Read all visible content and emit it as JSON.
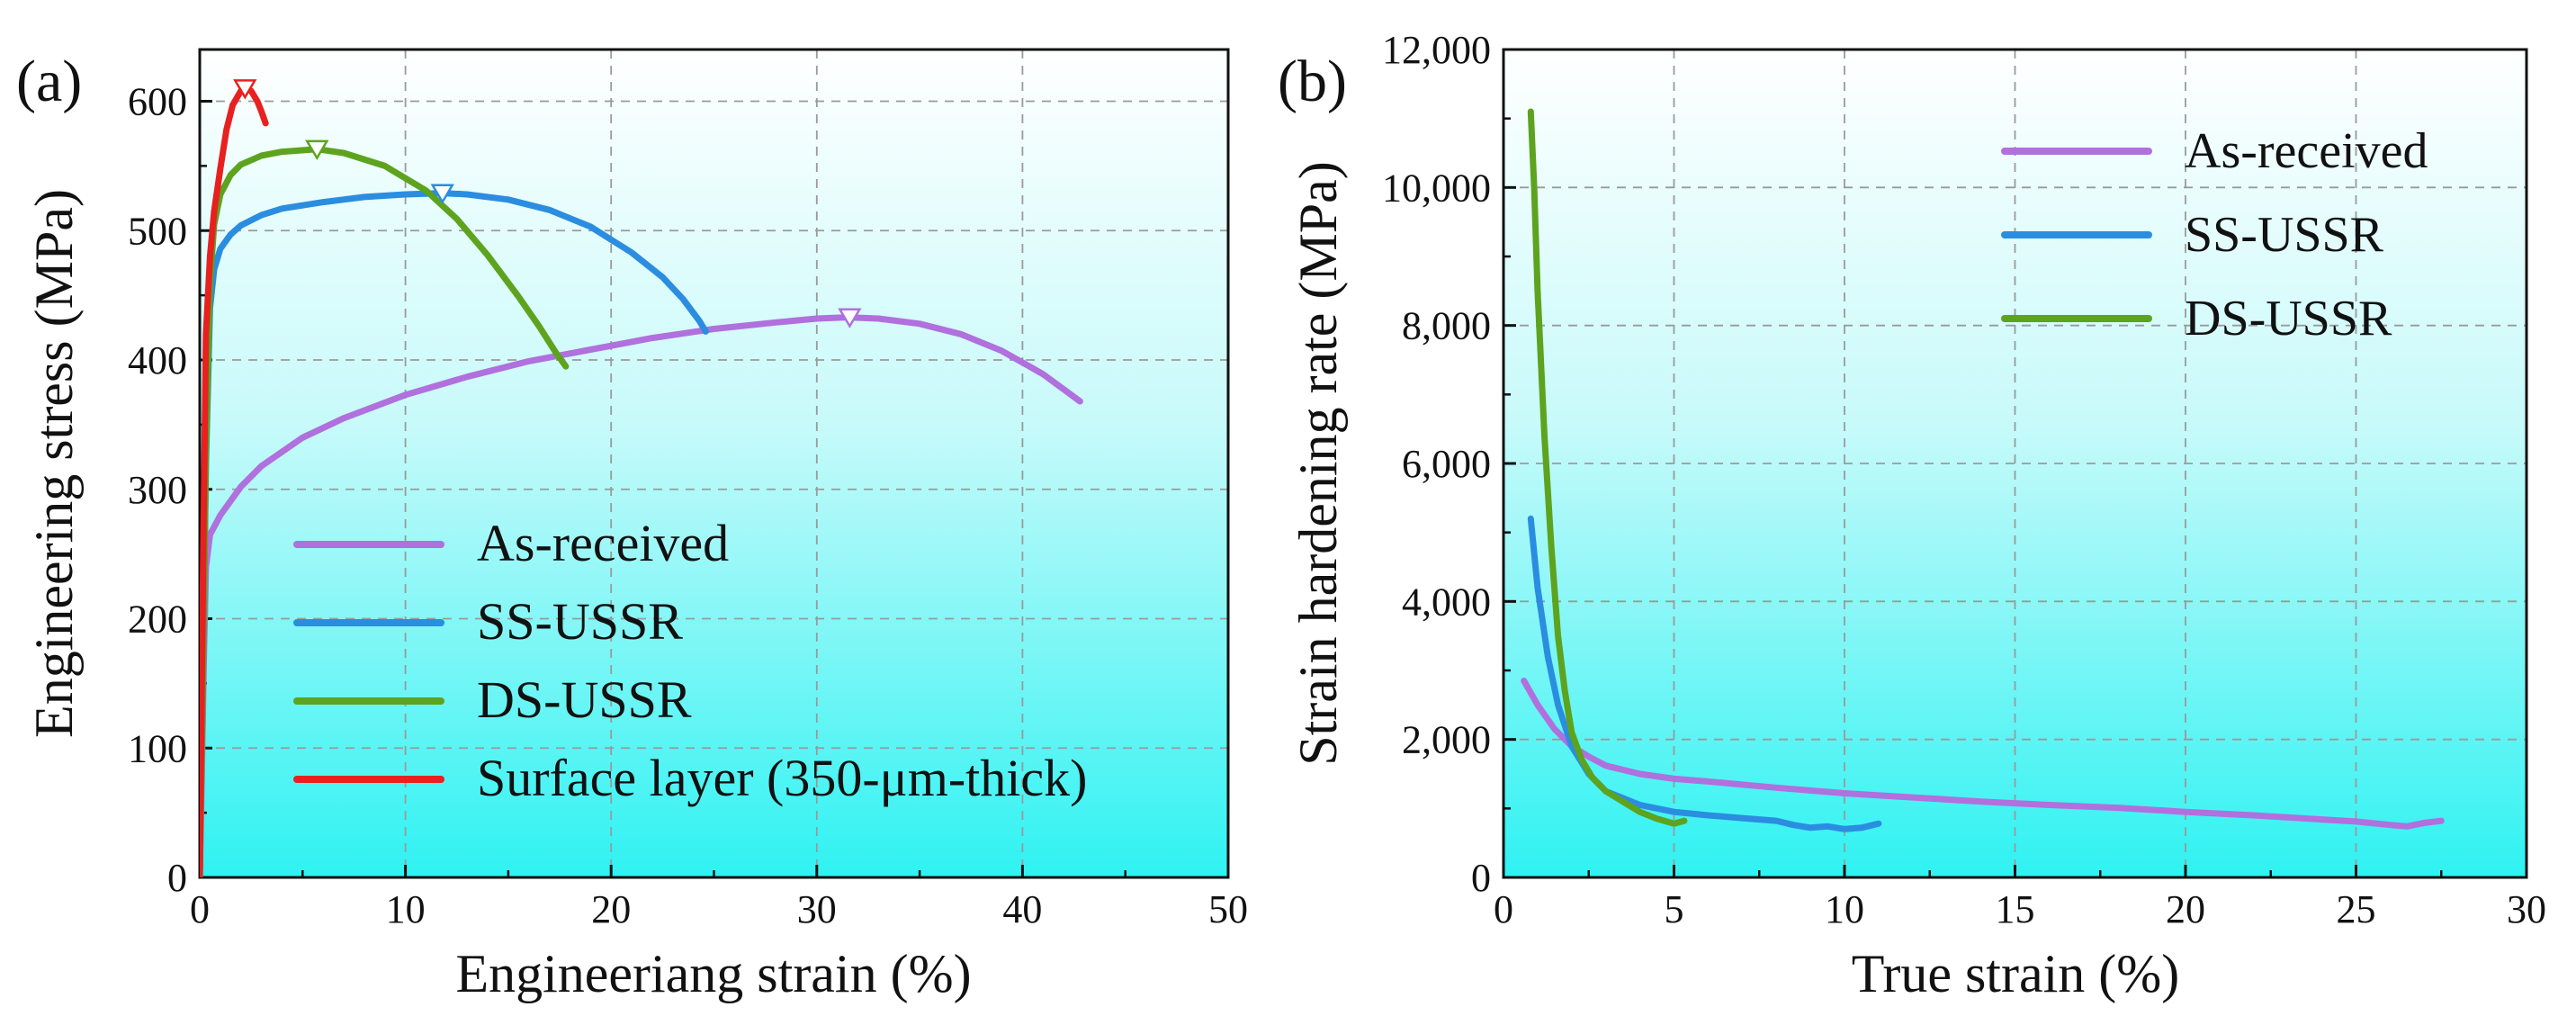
{
  "chart_data": [
    {
      "type": "line",
      "panel_label": "(a)",
      "xlabel": "Engineeriang strain (%)",
      "ylabel": "Engineering stress (MPa)",
      "xlim": [
        0,
        50
      ],
      "ylim": [
        0,
        640
      ],
      "xticks": [
        0,
        10,
        20,
        30,
        40,
        50
      ],
      "yticks": [
        0,
        100,
        200,
        300,
        400,
        500,
        600
      ],
      "grid": true,
      "legend": "bottom-center",
      "series": [
        {
          "name": "As-received",
          "color": "#b070dd",
          "x": [
            0,
            0.1,
            0.2,
            0.3,
            0.5,
            1,
            2,
            3,
            5,
            7,
            10,
            13,
            16,
            19,
            22,
            25,
            28,
            30,
            31.5,
            33,
            35,
            37,
            39,
            41,
            42.8
          ],
          "y": [
            0,
            80,
            170,
            240,
            265,
            280,
            302,
            318,
            340,
            355,
            373,
            387,
            399,
            408,
            417,
            424,
            429,
            432,
            433,
            432,
            428,
            420,
            407,
            389,
            368
          ],
          "uts": [
            31.6,
            433
          ]
        },
        {
          "name": "SS-USSR",
          "color": "#2b8de0",
          "x": [
            0,
            0.15,
            0.3,
            0.5,
            0.7,
            1,
            1.5,
            2,
            3,
            4,
            6,
            8,
            10,
            11.8,
            13,
            15,
            17,
            19,
            21,
            22.5,
            23.5,
            24.3,
            24.6
          ],
          "y": [
            0,
            150,
            320,
            440,
            470,
            486,
            497,
            504,
            512,
            517,
            522,
            526,
            528,
            529,
            528,
            524,
            516,
            503,
            483,
            464,
            447,
            430,
            422
          ],
          "uts": [
            11.8,
            529
          ]
        },
        {
          "name": "DS-USSR",
          "color": "#5da31e",
          "x": [
            0,
            0.15,
            0.3,
            0.5,
            0.7,
            1,
            1.5,
            2,
            3,
            4,
            5.7,
            7,
            9,
            11,
            12.5,
            14,
            15.5,
            16.5,
            17.3,
            17.8
          ],
          "y": [
            0,
            150,
            330,
            460,
            505,
            528,
            543,
            551,
            558,
            561,
            563,
            560,
            550,
            531,
            509,
            481,
            449,
            426,
            406,
            395
          ],
          "uts": [
            5.7,
            563
          ]
        },
        {
          "name": "Surface layer (350-μm-thick)",
          "color": "#e82020",
          "x": [
            0,
            0.15,
            0.3,
            0.5,
            0.7,
            1,
            1.3,
            1.6,
            2,
            2.2,
            2.5,
            2.8,
            3.0,
            3.2
          ],
          "y": [
            0,
            220,
            420,
            480,
            515,
            548,
            578,
            597,
            608,
            610,
            608,
            600,
            592,
            583
          ],
          "uts": [
            2.2,
            610
          ]
        }
      ]
    },
    {
      "type": "line",
      "panel_label": "(b)",
      "xlabel": "True strain (%)",
      "ylabel": "Strain hardening rate (MPa)",
      "xlim": [
        0,
        30
      ],
      "ylim": [
        0,
        12000
      ],
      "xticks": [
        0,
        5,
        10,
        15,
        20,
        25,
        30
      ],
      "yticks": [
        0,
        2000,
        4000,
        6000,
        8000,
        10000,
        12000
      ],
      "ytick_labels": [
        "0",
        "2,000",
        "4,000",
        "6,000",
        "8,000",
        "10,000",
        "12,000"
      ],
      "grid": true,
      "legend": "top-right",
      "series": [
        {
          "name": "As-received",
          "color": "#b070dd",
          "x": [
            0.6,
            1,
            1.5,
            2,
            2.5,
            3,
            4,
            5,
            6,
            8,
            10,
            12,
            14,
            16,
            18,
            20,
            22,
            24,
            25,
            26,
            26.5,
            27,
            27.5
          ],
          "y": [
            2850,
            2500,
            2150,
            1900,
            1750,
            1620,
            1500,
            1430,
            1390,
            1300,
            1220,
            1160,
            1100,
            1050,
            1010,
            950,
            900,
            840,
            810,
            760,
            740,
            790,
            820
          ]
        },
        {
          "name": "SS-USSR",
          "color": "#2b8de0",
          "x": [
            0.8,
            1,
            1.3,
            1.6,
            2,
            2.5,
            3,
            4,
            5,
            6,
            7,
            8,
            8.5,
            9,
            9.5,
            10,
            10.5,
            11
          ],
          "y": [
            5200,
            4200,
            3200,
            2500,
            1900,
            1500,
            1250,
            1050,
            950,
            900,
            860,
            820,
            760,
            720,
            740,
            700,
            720,
            780
          ]
        },
        {
          "name": "DS-USSR",
          "color": "#5da31e",
          "x": [
            0.8,
            0.9,
            1,
            1.2,
            1.4,
            1.6,
            1.8,
            2,
            2.3,
            2.6,
            3,
            3.5,
            4,
            4.5,
            5,
            5.3
          ],
          "y": [
            11100,
            10000,
            8500,
            6400,
            4800,
            3500,
            2700,
            2100,
            1700,
            1450,
            1250,
            1100,
            950,
            850,
            780,
            820
          ]
        }
      ]
    }
  ]
}
